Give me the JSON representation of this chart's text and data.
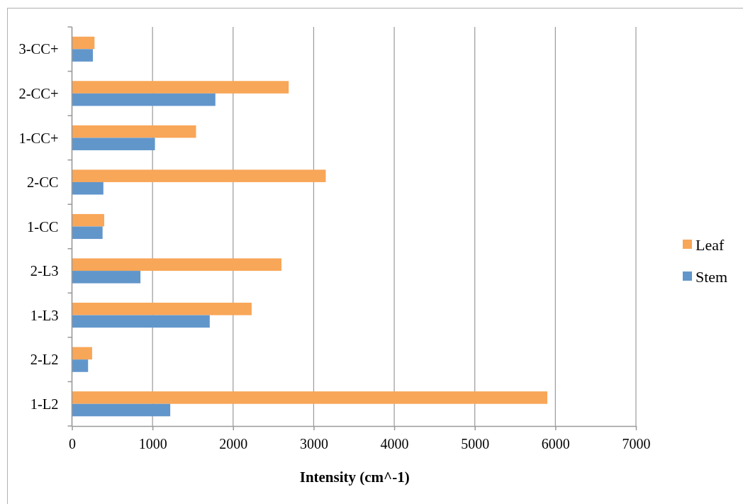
{
  "chart_data": {
    "type": "bar",
    "orientation": "horizontal",
    "xlabel": "Intensity (cm^-1)",
    "categories": [
      "3-CC+",
      "2-CC+",
      "1-CC+",
      "2-CC",
      "1-CC",
      "2-L3",
      "1-L3",
      "2-L2",
      "1-L2"
    ],
    "series": [
      {
        "name": "Leaf",
        "color": "#f8a658",
        "values": [
          280,
          2690,
          1540,
          3150,
          400,
          2600,
          2230,
          250,
          5900
        ]
      },
      {
        "name": "Stem",
        "color": "#6196cb",
        "values": [
          260,
          1780,
          1030,
          390,
          380,
          850,
          1710,
          200,
          1220
        ]
      }
    ],
    "xlim": [
      0,
      7000
    ],
    "xticks": [
      0,
      1000,
      2000,
      3000,
      4000,
      5000,
      6000,
      7000
    ],
    "grid": "x",
    "legend": "right"
  }
}
